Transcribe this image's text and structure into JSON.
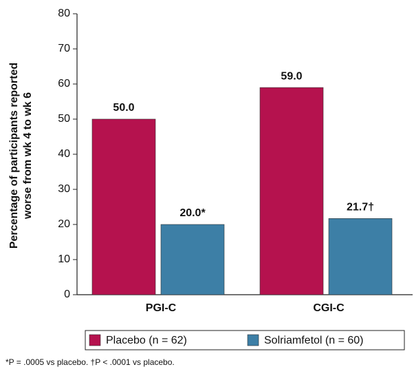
{
  "chart_data": {
    "type": "bar",
    "ylabel": [
      "Percentage of participants reported",
      "worse from wk 4 to wk 6"
    ],
    "categories": [
      "PGI-C",
      "CGI-C"
    ],
    "series": [
      {
        "name": "Placebo (n = 62)",
        "color": "#b5124e",
        "values": [
          50,
          59
        ],
        "value_labels": [
          "50.0",
          "59.0"
        ]
      },
      {
        "name": "Solriamfetol (n = 60)",
        "color": "#3d7fa6",
        "values": [
          20,
          21.7
        ],
        "value_labels": [
          "20.0*",
          "21.7†"
        ]
      }
    ],
    "ylim": [
      0,
      80
    ],
    "yticks": [
      0,
      10,
      20,
      30,
      40,
      50,
      60,
      70,
      80
    ],
    "footnote": "*P = .0005 vs placebo. †P < .0001 vs placebo."
  }
}
